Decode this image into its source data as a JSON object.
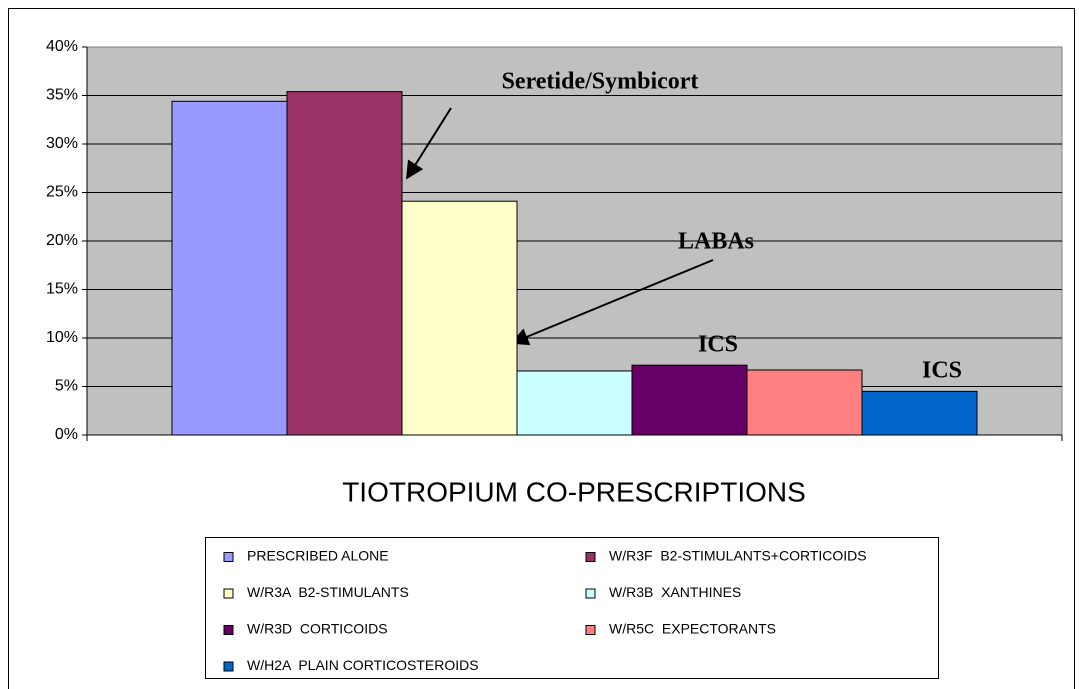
{
  "chart_data": {
    "type": "bar",
    "xlabel": "TIOTROPIUM CO-PRESCRIPTIONS",
    "categories": [
      null
    ],
    "series": [
      {
        "name": "PRESCRIBED ALONE",
        "color": "#9999ff",
        "values": [
          34.4
        ]
      },
      {
        "name": "W/R3F  B2-STIMULANTS+CORTICOIDS",
        "color": "#993366",
        "values": [
          35.4
        ]
      },
      {
        "name": "W/R3A  B2-STIMULANTS",
        "color": "#ffffcc",
        "values": [
          24.1
        ]
      },
      {
        "name": "W/R3B  XANTHINES",
        "color": "#ccffff",
        "values": [
          6.6
        ]
      },
      {
        "name": "W/R3D  CORTICOIDS",
        "color": "#660066",
        "values": [
          7.2
        ]
      },
      {
        "name": "W/R5C  EXPECTORANTS",
        "color": "#ff8080",
        "values": [
          6.7
        ]
      },
      {
        "name": "W/H2A  PLAIN CORTICOSTEROIDS",
        "color": "#0066cc",
        "values": [
          4.5
        ]
      }
    ],
    "ylim": [
      0,
      40
    ],
    "yticks": [
      {
        "value": 0,
        "label": "0%"
      },
      {
        "value": 5,
        "label": "5%"
      },
      {
        "value": 10,
        "label": "10%"
      },
      {
        "value": 15,
        "label": "15%"
      },
      {
        "value": 20,
        "label": "20%"
      },
      {
        "value": 25,
        "label": "25%"
      },
      {
        "value": 30,
        "label": "30%"
      },
      {
        "value": 35,
        "label": "35%"
      },
      {
        "value": 40,
        "label": "40%"
      }
    ],
    "grid": true,
    "plot_background": "#c0c0c0",
    "annotations": [
      "Seretide/Symbicort",
      "LABAs",
      "ICS",
      "ICS"
    ]
  }
}
